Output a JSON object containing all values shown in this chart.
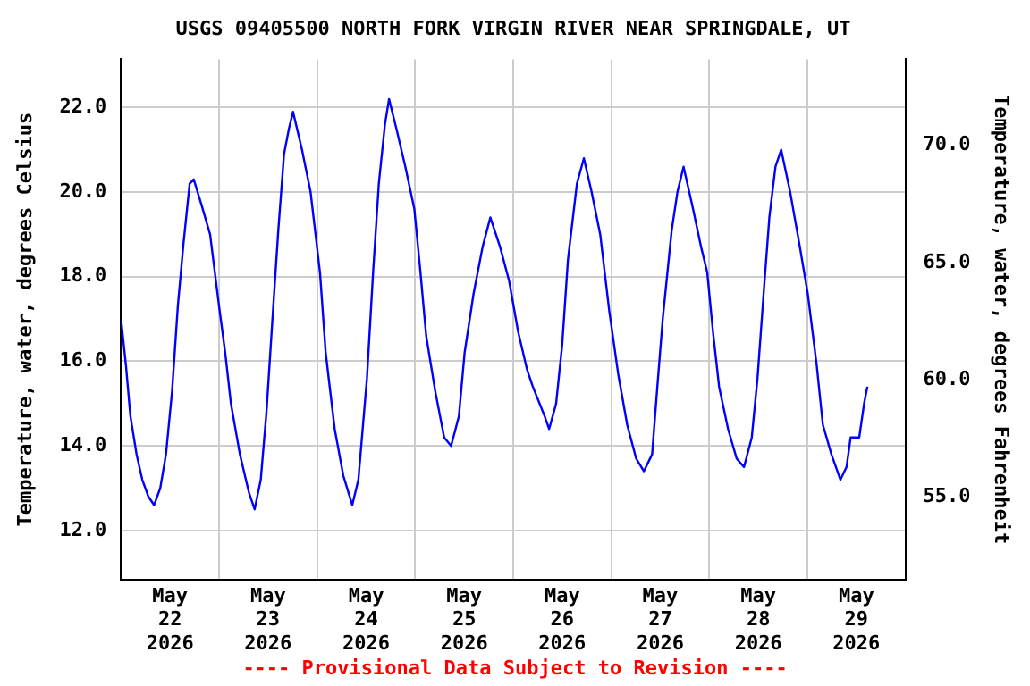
{
  "chart_data": {
    "type": "line",
    "title": "USGS 09405500 NORTH FORK VIRGIN RIVER NEAR SPRINGDALE, UT",
    "ylabel": "Temperature, water, degrees Celsius",
    "y2label": "Temperature, water, degrees Fahrenheit",
    "annotations": [
      "---- Provisional Data Subject to Revision ----"
    ],
    "x": [
      "2026-05-22T00:00",
      "2026-05-22T01:12",
      "2026-05-22T02:18",
      "2026-05-22T03:48",
      "2026-05-22T05:12",
      "2026-05-22T06:42",
      "2026-05-22T08:06",
      "2026-05-22T09:36",
      "2026-05-22T11:00",
      "2026-05-22T12:30",
      "2026-05-22T13:54",
      "2026-05-22T15:18",
      "2026-05-22T16:48",
      "2026-05-22T17:48",
      "2026-05-22T19:42",
      "2026-05-22T21:48",
      "2026-05-23T00:00",
      "2026-05-23T01:30",
      "2026-05-23T02:54",
      "2026-05-23T05:06",
      "2026-05-23T07:18",
      "2026-05-23T08:42",
      "2026-05-23T10:12",
      "2026-05-23T11:36",
      "2026-05-23T13:00",
      "2026-05-23T14:30",
      "2026-05-23T15:54",
      "2026-05-23T17:06",
      "2026-05-23T18:06",
      "2026-05-23T20:18",
      "2026-05-23T22:24",
      "2026-05-24T00:42",
      "2026-05-24T02:06",
      "2026-05-24T04:18",
      "2026-05-24T06:24",
      "2026-05-24T08:36",
      "2026-05-24T10:06",
      "2026-05-24T12:12",
      "2026-05-24T13:42",
      "2026-05-24T15:06",
      "2026-05-24T16:36",
      "2026-05-24T17:36",
      "2026-05-24T19:24",
      "2026-05-24T21:36",
      "2026-05-24T23:48",
      "2026-05-25T01:18",
      "2026-05-25T02:42",
      "2026-05-25T04:54",
      "2026-05-25T07:06",
      "2026-05-25T08:48",
      "2026-05-25T10:42",
      "2026-05-25T12:06",
      "2026-05-25T14:18",
      "2026-05-25T16:30",
      "2026-05-25T18:24",
      "2026-05-25T20:48",
      "2026-05-25T23:00",
      "2026-05-26T01:12",
      "2026-05-26T03:24",
      "2026-05-26T04:48",
      "2026-05-26T07:42",
      "2026-05-26T08:48",
      "2026-05-26T10:30",
      "2026-05-26T12:00",
      "2026-05-26T13:24",
      "2026-05-26T15:36",
      "2026-05-26T17:18",
      "2026-05-26T19:12",
      "2026-05-26T21:18",
      "2026-05-26T23:30",
      "2026-05-27T01:42",
      "2026-05-27T03:54",
      "2026-05-27T06:06",
      "2026-05-27T08:00",
      "2026-05-27T10:00",
      "2026-05-27T11:12",
      "2026-05-27T12:36",
      "2026-05-27T14:48",
      "2026-05-27T16:12",
      "2026-05-27T17:42",
      "2026-05-27T19:48",
      "2026-05-27T22:00",
      "2026-05-27T23:30",
      "2026-05-28T00:54",
      "2026-05-28T02:24",
      "2026-05-28T04:36",
      "2026-05-28T06:42",
      "2026-05-28T08:30",
      "2026-05-28T10:24",
      "2026-05-28T11:48",
      "2026-05-28T13:18",
      "2026-05-28T14:42",
      "2026-05-28T16:12",
      "2026-05-28T17:36",
      "2026-05-28T19:48",
      "2026-05-28T22:00",
      "2026-05-29T00:06",
      "2026-05-29T02:18",
      "2026-05-29T03:48",
      "2026-05-29T05:54",
      "2026-05-29T08:06",
      "2026-05-29T09:36",
      "2026-05-29T10:36",
      "2026-05-29T12:00",
      "2026-05-29T12:42",
      "2026-05-29T13:54",
      "2026-05-29T14:42"
    ],
    "series": [
      {
        "color": "#0000ff",
        "values": [
          17.0,
          15.9,
          14.7,
          13.8,
          13.2,
          12.8,
          12.6,
          13.0,
          13.8,
          15.3,
          17.3,
          18.8,
          20.2,
          20.3,
          19.7,
          19.0,
          17.3,
          16.2,
          15.0,
          13.8,
          12.9,
          12.5,
          13.2,
          14.8,
          16.9,
          19.1,
          20.9,
          21.5,
          21.9,
          21.0,
          20.0,
          18.1,
          16.2,
          14.4,
          13.3,
          12.6,
          13.2,
          15.6,
          18.1,
          20.2,
          21.6,
          22.2,
          21.5,
          20.6,
          19.6,
          18.1,
          16.6,
          15.3,
          14.2,
          14.0,
          14.7,
          16.2,
          17.6,
          18.7,
          19.4,
          18.7,
          17.9,
          16.7,
          15.8,
          15.4,
          14.7,
          14.4,
          15.0,
          16.4,
          18.4,
          20.2,
          20.8,
          20.0,
          19.0,
          17.2,
          15.7,
          14.5,
          13.7,
          13.4,
          13.8,
          15.3,
          17.0,
          19.1,
          20.0,
          20.6,
          19.7,
          18.7,
          18.1,
          16.7,
          15.4,
          14.4,
          13.7,
          13.5,
          14.2,
          15.6,
          17.6,
          19.4,
          20.6,
          21.0,
          20.0,
          18.8,
          17.6,
          15.9,
          14.5,
          13.8,
          13.2,
          13.5,
          14.2,
          14.2,
          14.2,
          15.0,
          15.4
        ]
      }
    ],
    "xlim": [
      "2026-05-22T00:00",
      "2026-05-30T00:00"
    ],
    "xticks": [
      {
        "value": "2026-05-22T00:00",
        "label": null
      },
      {
        "value": "2026-05-22T12:00",
        "label": "May\n22\n2026"
      },
      {
        "value": "2026-05-23T00:00",
        "label": null
      },
      {
        "value": "2026-05-23T12:00",
        "label": "May\n23\n2026"
      },
      {
        "value": "2026-05-24T00:00",
        "label": null
      },
      {
        "value": "2026-05-24T12:00",
        "label": "May\n24\n2026"
      },
      {
        "value": "2026-05-25T00:00",
        "label": null
      },
      {
        "value": "2026-05-25T12:00",
        "label": "May\n25\n2026"
      },
      {
        "value": "2026-05-26T00:00",
        "label": null
      },
      {
        "value": "2026-05-26T12:00",
        "label": "May\n26\n2026"
      },
      {
        "value": "2026-05-27T00:00",
        "label": null
      },
      {
        "value": "2026-05-27T12:00",
        "label": "May\n27\n2026"
      },
      {
        "value": "2026-05-28T00:00",
        "label": null
      },
      {
        "value": "2026-05-28T12:00",
        "label": "May\n28\n2026"
      },
      {
        "value": "2026-05-29T00:00",
        "label": null
      },
      {
        "value": "2026-05-29T12:00",
        "label": "May\n29\n2026"
      },
      {
        "value": "2026-05-30T00:00",
        "label": null
      }
    ],
    "ylim": [
      10.84,
      23.14
    ],
    "yticks": [
      {
        "value": 12,
        "label": "12.0"
      },
      {
        "value": 14,
        "label": "14.0"
      },
      {
        "value": 16,
        "label": "16.0"
      },
      {
        "value": 18,
        "label": "18.0"
      },
      {
        "value": 20,
        "label": "20.0"
      },
      {
        "value": 22,
        "label": "22.0"
      }
    ],
    "y2lim": [
      51.5,
      73.65
    ],
    "y2ticks": [
      {
        "value": 55,
        "label": "55.0"
      },
      {
        "value": 60,
        "label": "60.0"
      },
      {
        "value": 65,
        "label": "65.0"
      },
      {
        "value": 70,
        "label": "70.0"
      }
    ],
    "grid": true,
    "legend": false,
    "marker": "none",
    "line_style": "solid"
  }
}
